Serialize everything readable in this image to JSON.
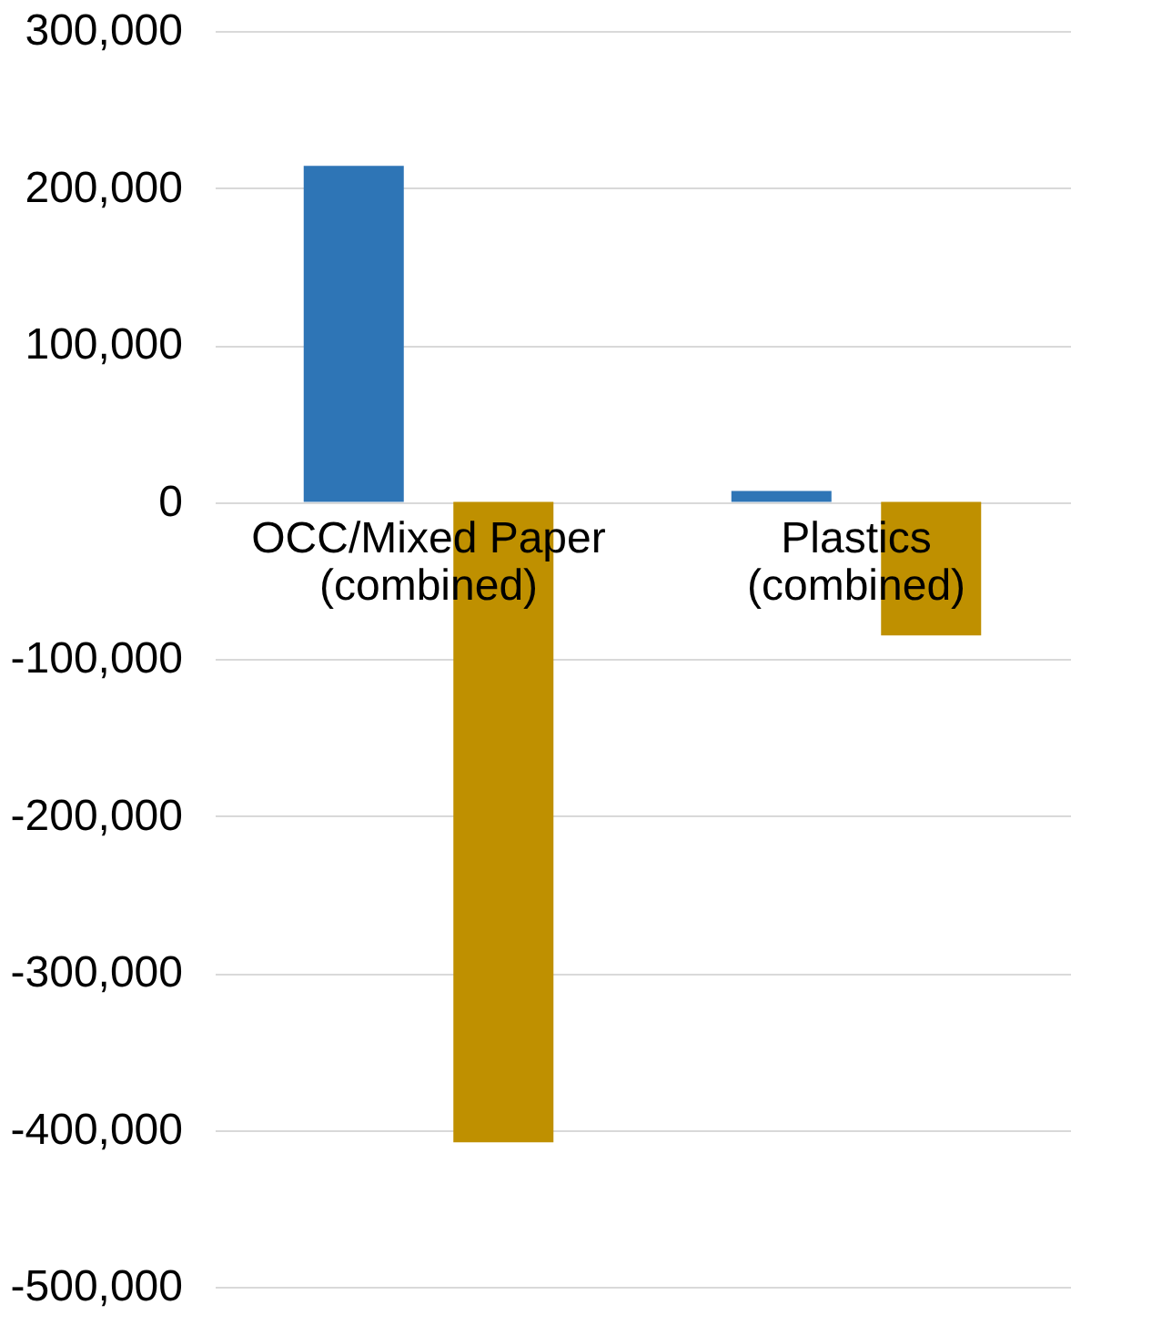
{
  "chart_data": {
    "type": "bar",
    "categories": [
      "OCC/Mixed Paper (combined)",
      "Plastics (combined)"
    ],
    "series": [
      {
        "color": "#2e75b6",
        "values": [
          214000,
          7000
        ]
      },
      {
        "color": "#bf9000",
        "values": [
          -408000,
          -85000
        ]
      }
    ],
    "ylim": [
      -500000,
      300000
    ],
    "yticks": [
      {
        "value": -500000,
        "label": "-500,000"
      },
      {
        "value": -400000,
        "label": "-400,000"
      },
      {
        "value": -300000,
        "label": "-300,000"
      },
      {
        "value": -200000,
        "label": "-200,000"
      },
      {
        "value": -100000,
        "label": "-100,000"
      },
      0,
      {
        "value": 100000,
        "label": "100,000"
      },
      {
        "value": 200000,
        "label": "200,000"
      },
      {
        "value": 300000,
        "label": "300,000"
      }
    ],
    "grid": "y"
  }
}
